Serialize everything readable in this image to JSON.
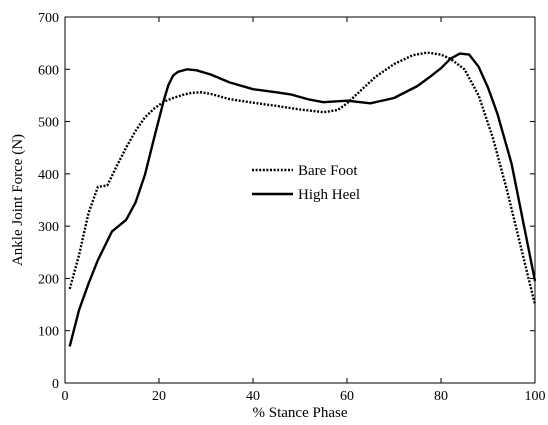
{
  "chart_data": {
    "type": "line",
    "xlabel": "% Stance Phase",
    "ylabel": "Ankle Joint Force (N)",
    "xlim": [
      0,
      100
    ],
    "ylim": [
      0,
      700
    ],
    "xticks": [
      0,
      20,
      40,
      60,
      80,
      100
    ],
    "yticks": [
      0,
      100,
      200,
      300,
      400,
      500,
      600,
      700
    ],
    "grid": false,
    "legend_position": "center",
    "series": [
      {
        "name": "Bare Foot",
        "line_style": "dotted",
        "color": "#000000",
        "x": [
          1,
          3,
          5,
          7,
          9,
          11,
          13,
          15,
          17,
          19,
          21,
          23,
          25,
          27,
          29,
          31,
          35,
          40,
          45,
          50,
          55,
          58,
          60,
          63,
          66,
          70,
          74,
          77,
          80,
          82,
          85,
          88,
          91,
          94,
          97,
          100
        ],
        "y": [
          180,
          245,
          325,
          375,
          378,
          415,
          450,
          482,
          508,
          525,
          538,
          545,
          551,
          555,
          556,
          553,
          543,
          536,
          530,
          523,
          518,
          522,
          535,
          560,
          585,
          610,
          627,
          632,
          628,
          620,
          600,
          550,
          470,
          370,
          260,
          150
        ]
      },
      {
        "name": "High Heel",
        "line_style": "solid",
        "color": "#000000",
        "x": [
          1,
          3,
          5,
          7,
          10,
          13,
          15,
          17,
          19,
          21,
          22,
          23,
          24,
          26,
          28,
          31,
          35,
          40,
          45,
          48,
          52,
          55,
          60,
          65,
          70,
          75,
          78,
          80,
          82,
          84,
          86,
          88,
          90,
          92,
          95,
          100
        ],
        "y": [
          70,
          140,
          190,
          235,
          290,
          312,
          345,
          398,
          470,
          540,
          570,
          588,
          595,
          600,
          598,
          590,
          575,
          562,
          556,
          552,
          542,
          537,
          540,
          535,
          545,
          568,
          588,
          602,
          620,
          630,
          628,
          605,
          565,
          515,
          420,
          195
        ]
      }
    ]
  }
}
